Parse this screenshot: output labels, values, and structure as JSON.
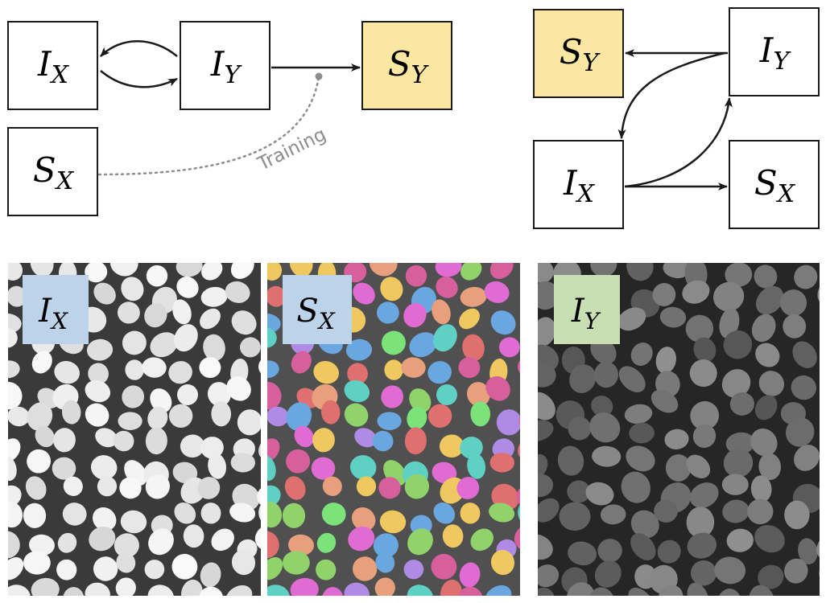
{
  "left_diagram": {
    "nodes": [
      {
        "id": "ix",
        "main": "I",
        "sub": "X",
        "fill": "#ffffff"
      },
      {
        "id": "iy",
        "main": "I",
        "sub": "Y",
        "fill": "#ffffff"
      },
      {
        "id": "sy",
        "main": "S",
        "sub": "Y",
        "fill": "#fbe7a1"
      },
      {
        "id": "sx",
        "main": "S",
        "sub": "X",
        "fill": "#ffffff"
      }
    ],
    "training_label": "Training"
  },
  "right_diagram": {
    "nodes": [
      {
        "id": "sy",
        "main": "S",
        "sub": "Y",
        "fill": "#fbe7a1"
      },
      {
        "id": "iy",
        "main": "I",
        "sub": "Y",
        "fill": "#ffffff"
      },
      {
        "id": "ix",
        "main": "I",
        "sub": "X",
        "fill": "#ffffff"
      },
      {
        "id": "sx",
        "main": "S",
        "sub": "X",
        "fill": "#ffffff"
      }
    ]
  },
  "panels": [
    {
      "id": "ix-image",
      "badge_main": "I",
      "badge_sub": "X",
      "badge_color": "#bcd3ea"
    },
    {
      "id": "sx-image",
      "badge_main": "S",
      "badge_sub": "X",
      "badge_color": "#bcd3ea"
    },
    {
      "id": "iy-image",
      "badge_main": "I",
      "badge_sub": "Y",
      "badge_color": "#c7dfb2"
    }
  ],
  "colors": {
    "stroke": "#1a1a1a",
    "dotted": "#8c8c8c",
    "segment_palette": [
      "#e06bd3",
      "#e07070",
      "#6aa6e0",
      "#7be37a",
      "#f0c860",
      "#b08be6",
      "#5fd1c4",
      "#e8a07c",
      "#8fd36a",
      "#d65f9c"
    ]
  }
}
